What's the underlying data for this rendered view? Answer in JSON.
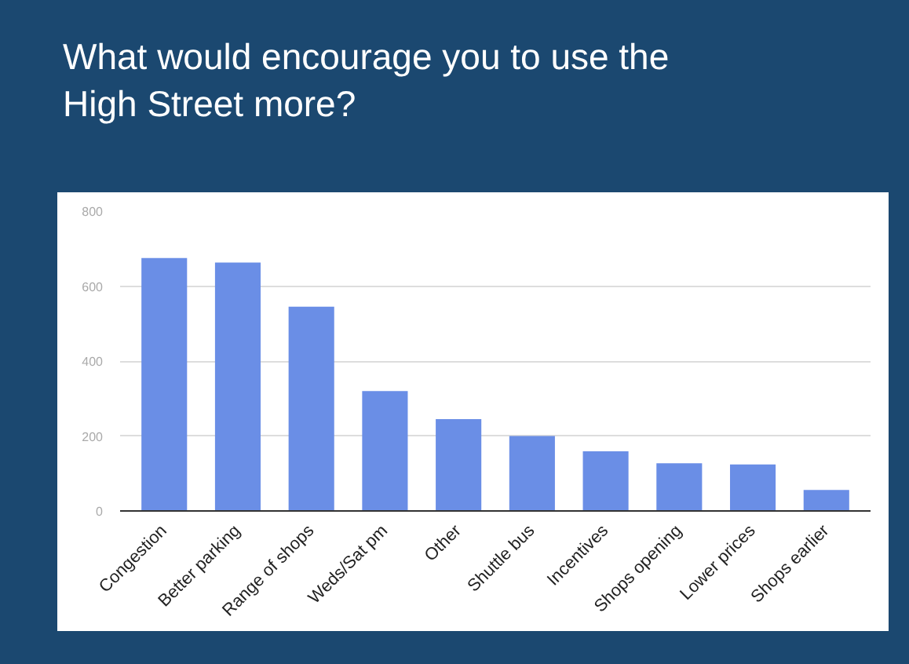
{
  "chart_data": {
    "type": "bar",
    "title": "What would encourage you to use the High Street more?",
    "categories": [
      "Congestion",
      "Better parking",
      "Range of shops",
      "Weds/Sat pm",
      "Other",
      "Shuttle bus",
      "Incentives",
      "Shops opening",
      "Lower prices",
      "Shops earlier"
    ],
    "values": [
      675,
      663,
      545,
      320,
      245,
      200,
      159,
      127,
      124,
      56
    ],
    "color": "#6a8ee6",
    "ylim": [
      0,
      800
    ],
    "yticks": [
      0,
      200,
      400,
      600,
      800
    ],
    "grid": "y"
  }
}
